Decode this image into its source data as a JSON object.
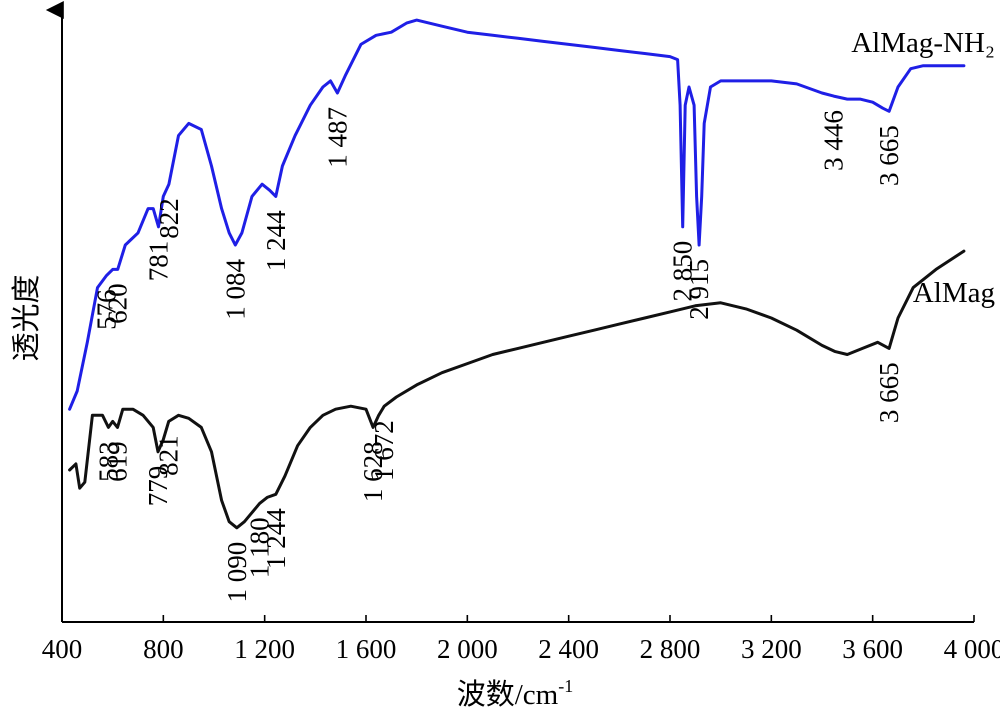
{
  "chart_data": {
    "type": "line",
    "xlabel": "波数/cm",
    "xlabel_sup": "-1",
    "ylabel": "透光度",
    "xlim": [
      400,
      4000
    ],
    "ylim": [
      0,
      100
    ],
    "x_ticks": [
      {
        "value": 400,
        "label": "400"
      },
      {
        "value": 800,
        "label": "800"
      },
      {
        "value": 1200,
        "label": "1 200"
      },
      {
        "value": 1600,
        "label": "1 600"
      },
      {
        "value": 2000,
        "label": "2 000"
      },
      {
        "value": 2400,
        "label": "2 400"
      },
      {
        "value": 2800,
        "label": "2 800"
      },
      {
        "value": 3200,
        "label": "3 200"
      },
      {
        "value": 3600,
        "label": "3 600"
      },
      {
        "value": 4000,
        "label": "4 000"
      }
    ],
    "series": [
      {
        "name": "AlMag-NH₂",
        "color": "#1f1fe6",
        "points": [
          [
            430,
            35.0
          ],
          [
            460,
            38.0
          ],
          [
            500,
            46.0
          ],
          [
            540,
            55.0
          ],
          [
            576,
            57.0
          ],
          [
            600,
            58.0
          ],
          [
            620,
            58.0
          ],
          [
            650,
            62.0
          ],
          [
            700,
            64.0
          ],
          [
            740,
            68.0
          ],
          [
            760,
            68.0
          ],
          [
            781,
            65.0
          ],
          [
            800,
            70.0
          ],
          [
            822,
            72.0
          ],
          [
            860,
            80.0
          ],
          [
            900,
            82.0
          ],
          [
            950,
            81.0
          ],
          [
            990,
            75.0
          ],
          [
            1030,
            68.0
          ],
          [
            1060,
            64.0
          ],
          [
            1084,
            62.0
          ],
          [
            1110,
            64.0
          ],
          [
            1150,
            70.0
          ],
          [
            1190,
            72.0
          ],
          [
            1220,
            71.0
          ],
          [
            1244,
            70.0
          ],
          [
            1270,
            75.0
          ],
          [
            1320,
            80.0
          ],
          [
            1380,
            85.0
          ],
          [
            1430,
            88.0
          ],
          [
            1460,
            89.0
          ],
          [
            1487,
            87.0
          ],
          [
            1520,
            90.0
          ],
          [
            1580,
            95.0
          ],
          [
            1640,
            96.5
          ],
          [
            1700,
            97.0
          ],
          [
            1760,
            98.5
          ],
          [
            1800,
            99.0
          ],
          [
            1900,
            98.0
          ],
          [
            2000,
            97.0
          ],
          [
            2100,
            96.5
          ],
          [
            2200,
            96.0
          ],
          [
            2300,
            95.5
          ],
          [
            2400,
            95.0
          ],
          [
            2500,
            94.5
          ],
          [
            2600,
            94.0
          ],
          [
            2700,
            93.5
          ],
          [
            2800,
            93.0
          ],
          [
            2830,
            92.5
          ],
          [
            2840,
            85.0
          ],
          [
            2850,
            65.0
          ],
          [
            2860,
            85.0
          ],
          [
            2875,
            88.0
          ],
          [
            2895,
            85.0
          ],
          [
            2905,
            70.0
          ],
          [
            2915,
            62.0
          ],
          [
            2925,
            70.0
          ],
          [
            2935,
            82.0
          ],
          [
            2960,
            88.0
          ],
          [
            3000,
            89.0
          ],
          [
            3100,
            89.0
          ],
          [
            3200,
            89.0
          ],
          [
            3300,
            88.5
          ],
          [
            3400,
            87.0
          ],
          [
            3446,
            86.5
          ],
          [
            3500,
            86.0
          ],
          [
            3550,
            86.0
          ],
          [
            3600,
            85.5
          ],
          [
            3640,
            84.5
          ],
          [
            3665,
            84.0
          ],
          [
            3700,
            88.0
          ],
          [
            3750,
            91.0
          ],
          [
            3800,
            91.5
          ],
          [
            3900,
            91.5
          ],
          [
            3960,
            91.5
          ]
        ],
        "peak_labels": [
          {
            "x": 576,
            "label": "576"
          },
          {
            "x": 620,
            "label": "620"
          },
          {
            "x": 781,
            "label": "781"
          },
          {
            "x": 822,
            "label": "822"
          },
          {
            "x": 1084,
            "label": "1 084"
          },
          {
            "x": 1244,
            "label": "1 244"
          },
          {
            "x": 1487,
            "label": "1 487"
          },
          {
            "x": 2850,
            "label": "2 850"
          },
          {
            "x": 2915,
            "label": "2 915"
          },
          {
            "x": 3446,
            "label": "3 446"
          },
          {
            "x": 3665,
            "label": "3 665"
          }
        ]
      },
      {
        "name": "AlMag",
        "color": "#111111",
        "points": [
          [
            430,
            25.0
          ],
          [
            455,
            26.0
          ],
          [
            470,
            22.0
          ],
          [
            490,
            23.0
          ],
          [
            520,
            34.0
          ],
          [
            560,
            34.0
          ],
          [
            583,
            32.0
          ],
          [
            600,
            33.0
          ],
          [
            619,
            32.0
          ],
          [
            640,
            35.0
          ],
          [
            680,
            35.0
          ],
          [
            720,
            34.0
          ],
          [
            760,
            32.0
          ],
          [
            779,
            28.0
          ],
          [
            800,
            30.0
          ],
          [
            821,
            33.0
          ],
          [
            860,
            34.0
          ],
          [
            900,
            33.5
          ],
          [
            950,
            32.0
          ],
          [
            990,
            28.0
          ],
          [
            1030,
            20.0
          ],
          [
            1060,
            16.5
          ],
          [
            1090,
            15.5
          ],
          [
            1120,
            16.5
          ],
          [
            1150,
            18.0
          ],
          [
            1180,
            19.5
          ],
          [
            1210,
            20.5
          ],
          [
            1244,
            21.0
          ],
          [
            1280,
            24.0
          ],
          [
            1330,
            29.0
          ],
          [
            1380,
            32.0
          ],
          [
            1430,
            34.0
          ],
          [
            1480,
            35.0
          ],
          [
            1540,
            35.5
          ],
          [
            1600,
            35.0
          ],
          [
            1628,
            32.0
          ],
          [
            1650,
            34.0
          ],
          [
            1672,
            35.5
          ],
          [
            1720,
            37.0
          ],
          [
            1800,
            39.0
          ],
          [
            1900,
            41.0
          ],
          [
            2000,
            42.5
          ],
          [
            2100,
            44.0
          ],
          [
            2200,
            45.0
          ],
          [
            2300,
            46.0
          ],
          [
            2400,
            47.0
          ],
          [
            2500,
            48.0
          ],
          [
            2600,
            49.0
          ],
          [
            2700,
            50.0
          ],
          [
            2800,
            51.0
          ],
          [
            2900,
            52.0
          ],
          [
            3000,
            52.5
          ],
          [
            3100,
            51.5
          ],
          [
            3200,
            50.0
          ],
          [
            3300,
            48.0
          ],
          [
            3400,
            45.5
          ],
          [
            3450,
            44.5
          ],
          [
            3500,
            44.0
          ],
          [
            3560,
            45.0
          ],
          [
            3620,
            46.0
          ],
          [
            3665,
            45.0
          ],
          [
            3700,
            50.0
          ],
          [
            3760,
            55.0
          ],
          [
            3850,
            58.0
          ],
          [
            3960,
            61.0
          ]
        ],
        "peak_labels": [
          {
            "x": 583,
            "label": "583"
          },
          {
            "x": 619,
            "label": "619"
          },
          {
            "x": 779,
            "label": "779"
          },
          {
            "x": 821,
            "label": "821"
          },
          {
            "x": 1090,
            "label": "1 090"
          },
          {
            "x": 1180,
            "label": "1 180"
          },
          {
            "x": 1244,
            "label": "1 244"
          },
          {
            "x": 1628,
            "label": "1 628"
          },
          {
            "x": 1672,
            "label": "1 672"
          },
          {
            "x": 3665,
            "label": "3 665"
          }
        ]
      }
    ]
  }
}
